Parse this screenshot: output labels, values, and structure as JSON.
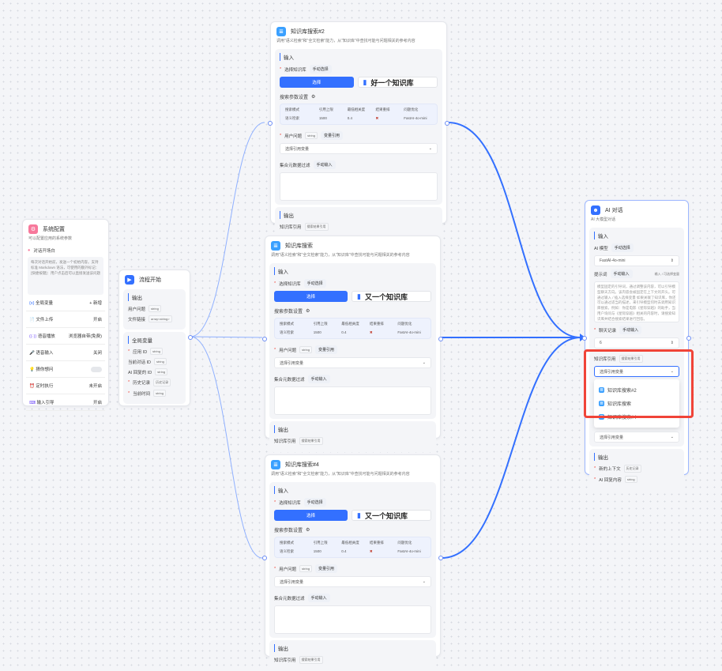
{
  "kb_nodes": [
    {
      "title": "知识库搜索#2",
      "desc": "调用\"语义检索\"和\"全文检索\"能力，从\"知识库\"中查找可能与问题相关的参考内容",
      "input": "输入",
      "select_kb": "选择知识库",
      "manual_select": "手动选择",
      "select_btn": "选择",
      "kb_name": "好一个知识库",
      "params_title": "搜索参数设置",
      "param_headers": [
        "搜索模式",
        "引用上限",
        "最低相关度",
        "结果重排",
        "问题优化"
      ],
      "param_values": [
        "语义检索",
        "1500",
        "0.4",
        "✖",
        "FastAI-4o-mini"
      ],
      "user_q": "用户问题",
      "string": "string",
      "var_ref": "变量引用",
      "select_var": "选择引用变量",
      "filter": "集合元数据过滤",
      "manual_input": "手动输入",
      "output": "输出",
      "kb_ref": "知识库引用",
      "kb_ref_tag": "搜索结果引用"
    },
    {
      "title": "知识库搜索",
      "desc": "调用\"语义检索\"和\"全文检索\"能力，从\"知识库\"中查找可能与问题相关的参考内容",
      "input": "输入",
      "select_kb": "选择知识库",
      "manual_select": "手动选择",
      "select_btn": "选择",
      "kb_name": "又一个知识库",
      "params_title": "搜索参数设置",
      "param_headers": [
        "搜索模式",
        "引用上限",
        "最低相关度",
        "结果重排",
        "问题优化"
      ],
      "param_values": [
        "语义检索",
        "1500",
        "0.4",
        "✖",
        "FastAI-4o-mini"
      ],
      "user_q": "用户问题",
      "string": "string",
      "var_ref": "变量引用",
      "select_var": "选择引用变量",
      "filter": "集合元数据过滤",
      "manual_input": "手动输入",
      "output": "输出",
      "kb_ref": "知识库引用",
      "kb_ref_tag": "搜索结果引用"
    },
    {
      "title": "知识库搜索#4",
      "desc": "调用\"语义检索\"和\"全文检索\"能力，从\"知识库\"中查找可能与问题相关的参考内容",
      "input": "输入",
      "select_kb": "选择知识库",
      "manual_select": "手动选择",
      "select_btn": "选择",
      "kb_name": "又一个知识库",
      "params_title": "搜索参数设置",
      "param_headers": [
        "搜索模式",
        "引用上限",
        "最低相关度",
        "结果重排",
        "问题优化"
      ],
      "param_values": [
        "语义检索",
        "1500",
        "0.4",
        "✖",
        "FastAI-4o-mini"
      ],
      "user_q": "用户问题",
      "string": "string",
      "var_ref": "变量引用",
      "select_var": "选择引用变量",
      "filter": "集合元数据过滤",
      "manual_input": "手动输入",
      "output": "输出",
      "kb_ref": "知识库引用",
      "kb_ref_tag": "搜索结果引用"
    }
  ],
  "system": {
    "title": "系统配置",
    "desc": "可以配置应用的系统参数",
    "opener": "对话开场白",
    "opener_text": "每次对话开始前，发送一个初始内容。支持标准 Markdown 语法，可使用的额外标记：[快捷按键]：用户点击后可以直接发送该问题",
    "rows": [
      {
        "label": "全局变量",
        "value": "+ 新增"
      },
      {
        "label": "文件上传",
        "value": "开启"
      },
      {
        "label": "语音播放",
        "value": "浏览器自带(免费)"
      },
      {
        "label": "语音输入",
        "value": "关闭"
      },
      {
        "label": "猜你想问",
        "value": ""
      },
      {
        "label": "定时执行",
        "value": "未开启"
      },
      {
        "label": "输入引导",
        "value": "开启"
      }
    ]
  },
  "start": {
    "title": "流程开始",
    "output": "输出",
    "outputs": [
      {
        "label": "用户问题",
        "type": "string"
      },
      {
        "label": "文件链接",
        "type": "array<string>"
      }
    ],
    "globals_title": "全局变量",
    "globals": [
      {
        "label": "应用 ID",
        "type": "string"
      },
      {
        "label": "当前对话 ID",
        "type": "string"
      },
      {
        "label": "AI 回复的 ID",
        "type": "string"
      },
      {
        "label": "历史记录",
        "type": "历史记录"
      },
      {
        "label": "当前时间",
        "type": "string"
      }
    ]
  },
  "ai": {
    "title": "AI 对话",
    "desc": "AI 大模型对话",
    "input": "输入",
    "model_label": "AI 模型",
    "manual_select": "手动选择",
    "model": "FastAI-4o-mini",
    "prompt_label": "提示词",
    "manual_input": "手动输入",
    "insert_hint": "输入 / 可选择变量",
    "prompt_text": "模型固定的引导词，通过调整该内容，可以引导模型聊天方向。该内容会被固定在上下文的开头。可通过输入 / 插入选择变量 如果关联了知识库，你还可以通过适当的描述，来引导模型何时去调用知识库搜索。例如：你是电影《星际穿越》的助手，当用户询问与《星际穿越》相关的内容时，请搜索知识库并结合搜索结果进行回答。",
    "history_label": "聊天记录",
    "history_value": "6",
    "kb_ref_label": "知识库引用",
    "kb_ref_tag": "搜索结果引用",
    "select_var": "选择引用变量",
    "options": [
      "知识库搜索#2",
      "知识库搜索",
      "知识库搜索#4"
    ],
    "select_var2": "选择引用变量",
    "output": "输出",
    "outputs": [
      {
        "label": "新的上下文",
        "type": "历史记录"
      },
      {
        "label": "AI 回复内容",
        "type": "string"
      }
    ]
  },
  "colors": {
    "accent": "#3370ff",
    "highlight": "#f04438"
  }
}
